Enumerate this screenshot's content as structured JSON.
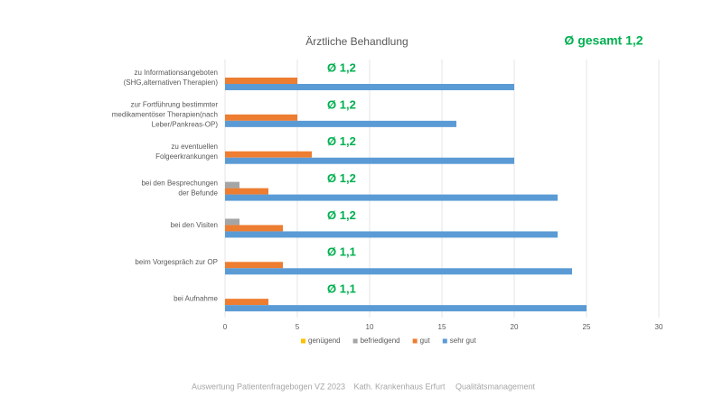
{
  "chart_data": {
    "type": "hbar",
    "title": "Ärztliche Behandlung",
    "overall": "Ø gesamt 1,2",
    "categories": [
      [
        "zu Informationsangeboten",
        "(SHG,alternativen Therapien)"
      ],
      [
        "zur Fortführung bestimmter",
        "medikamentöser Therapien(nach",
        "Leber/Pankreas-OP)"
      ],
      [
        "zu eventuellen",
        "Folgeerkrankungen"
      ],
      [
        "bei den Besprechungen",
        "der Befunde"
      ],
      [
        "bei den Visiten"
      ],
      [
        "beim Vorgespräch zur OP"
      ],
      [
        "bei Aufnahme"
      ]
    ],
    "annotations": [
      "Ø 1,2",
      "Ø 1,2",
      "Ø 1,2",
      "Ø 1,2",
      "Ø 1,2",
      "Ø 1,1",
      "Ø 1,1"
    ],
    "series": [
      {
        "name": "genügend",
        "color": "#ffc000",
        "values": [
          0,
          0,
          0,
          0,
          0,
          0,
          0
        ]
      },
      {
        "name": "befriedigend",
        "color": "#a5a5a5",
        "values": [
          0,
          0,
          0,
          1,
          1,
          0,
          0
        ]
      },
      {
        "name": "gut",
        "color": "#ed7d31",
        "values": [
          5,
          5,
          6,
          3,
          4,
          4,
          3
        ]
      },
      {
        "name": "sehr gut",
        "color": "#5b9bd5",
        "values": [
          20,
          16,
          20,
          23,
          23,
          24,
          25
        ]
      }
    ],
    "xlim": [
      0,
      30
    ],
    "xticks": [
      0,
      5,
      10,
      15,
      20,
      25,
      30
    ],
    "grid": true,
    "legend": "bottom",
    "footer": [
      "Auswertung Patientenfragebogen VZ 2023",
      "Kath. Krankenhaus Erfurt",
      "Qualitätsmanagement"
    ]
  }
}
